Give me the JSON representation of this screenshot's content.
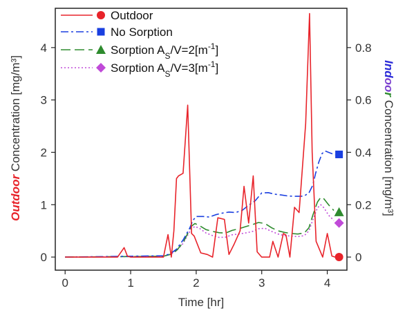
{
  "chart_data": {
    "type": "line",
    "xlabel": "Time [hr]",
    "ylabel_left": {
      "emphasis": "Outdoor",
      "rest": " Concentration [mg/m³]",
      "color": "#e8232a"
    },
    "ylabel_right": {
      "part1": "Ind",
      "part2": "oo",
      "part3": "r",
      "rest": " Concentration [mg/m³]",
      "colors": [
        "#2a2ad8",
        "#7a3fcf",
        "#2e8b2e"
      ]
    },
    "xlim": [
      -0.15,
      4.3
    ],
    "ylim_left": [
      -0.25,
      4.75
    ],
    "ylim_right": [
      -0.05,
      0.95
    ],
    "x_ticks": [
      0,
      1,
      2,
      3,
      4
    ],
    "y_ticks_left": [
      0,
      1,
      2,
      3,
      4
    ],
    "y_ticks_right": [
      "0",
      "0.2",
      "0.4",
      "0.6",
      "0.8"
    ],
    "y_ticks_right_values": [
      0,
      0.2,
      0.4,
      0.6,
      0.8
    ],
    "legend_placement": "top-left",
    "series": [
      {
        "name": "Outdoor",
        "axis": "left",
        "color": "#e8232a",
        "dash": "",
        "marker": "circle",
        "end_marker": {
          "x": 4.18,
          "y": 0.0
        },
        "x": [
          0,
          0.8,
          0.9,
          0.95,
          1.0,
          1.5,
          1.57,
          1.62,
          1.66,
          1.7,
          1.73,
          1.8,
          1.87,
          1.93,
          1.97,
          2.07,
          2.17,
          2.25,
          2.33,
          2.43,
          2.5,
          2.58,
          2.67,
          2.73,
          2.8,
          2.87,
          2.93,
          3.0,
          3.12,
          3.17,
          3.25,
          3.33,
          3.37,
          3.43,
          3.5,
          3.57,
          3.67,
          3.73,
          3.77,
          3.83,
          3.93,
          4.0,
          4.07,
          4.12
        ],
        "y": [
          0,
          0,
          0.18,
          0.02,
          0,
          0,
          0.43,
          0.0,
          0.5,
          1.5,
          1.55,
          1.6,
          2.9,
          0.45,
          0.4,
          0.08,
          0.05,
          0.0,
          0.75,
          0.72,
          0.05,
          0.25,
          0.5,
          1.35,
          0.65,
          1.55,
          0.1,
          0.0,
          0.0,
          0.3,
          0.0,
          0.45,
          0.42,
          0.0,
          0.95,
          0.85,
          2.55,
          4.65,
          2.0,
          0.3,
          0.0,
          0.45,
          0.02,
          0.0
        ]
      },
      {
        "name": "No Sorption",
        "axis": "right",
        "color": "#1a3fe0",
        "dash": "11,4,3,4",
        "marker": "square",
        "end_marker": {
          "x": 4.18,
          "y": 0.392
        },
        "x": [
          0,
          1.5,
          1.6,
          1.7,
          1.8,
          1.9,
          1.95,
          2.0,
          2.1,
          2.2,
          2.3,
          2.4,
          2.5,
          2.6,
          2.7,
          2.8,
          2.9,
          3.0,
          3.1,
          3.2,
          3.3,
          3.4,
          3.5,
          3.6,
          3.65,
          3.72,
          3.78,
          3.82,
          3.87,
          3.92,
          3.97,
          4.05,
          4.12
        ],
        "y": [
          0,
          0.005,
          0.012,
          0.03,
          0.065,
          0.11,
          0.14,
          0.155,
          0.155,
          0.153,
          0.162,
          0.168,
          0.172,
          0.17,
          0.178,
          0.198,
          0.215,
          0.245,
          0.246,
          0.24,
          0.237,
          0.233,
          0.232,
          0.232,
          0.234,
          0.245,
          0.275,
          0.318,
          0.362,
          0.395,
          0.405,
          0.397,
          0.39
        ]
      },
      {
        "name": "Sorption A",
        "label_tail": "/V=2[m",
        "label_sup": "-1",
        "label_end": "]",
        "axis": "right",
        "color": "#2e8b2e",
        "dash": "14,6",
        "marker": "triangle",
        "end_marker": {
          "x": 4.18,
          "y": 0.172
        },
        "x": [
          0,
          1.5,
          1.6,
          1.7,
          1.8,
          1.88,
          1.93,
          1.98,
          2.05,
          2.15,
          2.25,
          2.35,
          2.45,
          2.55,
          2.65,
          2.75,
          2.85,
          2.95,
          3.05,
          3.15,
          3.25,
          3.35,
          3.45,
          3.55,
          3.65,
          3.72,
          3.78,
          3.85,
          3.9,
          3.95,
          4.02,
          4.1
        ],
        "y": [
          0,
          0.003,
          0.01,
          0.025,
          0.055,
          0.095,
          0.118,
          0.128,
          0.12,
          0.105,
          0.098,
          0.093,
          0.092,
          0.102,
          0.108,
          0.116,
          0.123,
          0.132,
          0.128,
          0.112,
          0.1,
          0.094,
          0.09,
          0.088,
          0.092,
          0.112,
          0.16,
          0.21,
          0.228,
          0.222,
          0.2,
          0.178
        ]
      },
      {
        "name": "Sorption A",
        "label_tail": "/V=3[m",
        "label_sup": "-1",
        "label_end": "]",
        "axis": "right",
        "color": "#c04ad8",
        "dash": "2,3",
        "marker": "diamond",
        "end_marker": {
          "x": 4.18,
          "y": 0.13
        },
        "x": [
          0,
          1.5,
          1.6,
          1.7,
          1.8,
          1.88,
          1.93,
          1.98,
          2.05,
          2.15,
          2.25,
          2.35,
          2.45,
          2.55,
          2.65,
          2.75,
          2.85,
          2.95,
          3.05,
          3.15,
          3.25,
          3.35,
          3.45,
          3.55,
          3.65,
          3.72,
          3.78,
          3.85,
          3.9,
          3.95,
          4.02,
          4.1
        ],
        "y": [
          0,
          0.003,
          0.01,
          0.024,
          0.052,
          0.088,
          0.108,
          0.117,
          0.11,
          0.092,
          0.082,
          0.075,
          0.076,
          0.085,
          0.088,
          0.092,
          0.097,
          0.108,
          0.11,
          0.098,
          0.088,
          0.082,
          0.08,
          0.078,
          0.082,
          0.1,
          0.142,
          0.188,
          0.2,
          0.188,
          0.16,
          0.14
        ]
      }
    ],
    "legend_subscript": "S"
  }
}
